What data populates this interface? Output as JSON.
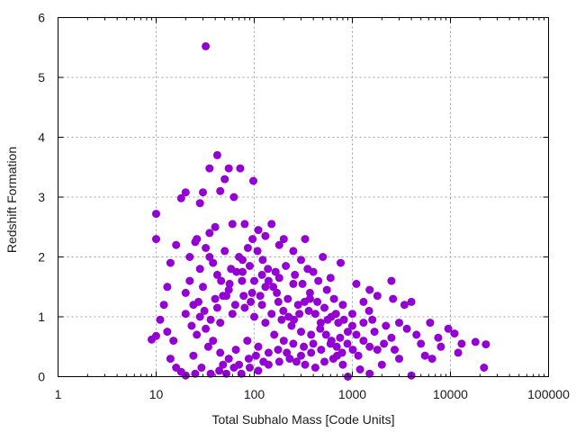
{
  "chart_data": {
    "type": "scatter",
    "xlabel": "Total Subhalo Mass [Code Units]",
    "ylabel": "Redshift Formation",
    "xscale": "log",
    "xlim": [
      1,
      100000
    ],
    "ylim": [
      0,
      6
    ],
    "xticks": [
      1,
      10,
      100,
      1000,
      10000,
      100000
    ],
    "xtick_labels": [
      "1",
      "10",
      "100",
      "1000",
      "10000",
      "100000"
    ],
    "yticks": [
      0,
      1,
      2,
      3,
      4,
      5,
      6
    ],
    "ytick_labels": [
      "0",
      "1",
      "2",
      "3",
      "4",
      "5",
      "6"
    ],
    "grid": true,
    "marker_color": "#9400d3",
    "series": [
      {
        "points": [
          [
            32,
            5.52
          ],
          [
            42,
            3.7
          ],
          [
            35,
            3.48
          ],
          [
            55,
            3.48
          ],
          [
            72,
            3.48
          ],
          [
            50,
            3.3
          ],
          [
            98,
            3.27
          ],
          [
            18,
            2.98
          ],
          [
            20,
            3.08
          ],
          [
            30,
            3.08
          ],
          [
            45,
            3.1
          ],
          [
            62,
            3.0
          ],
          [
            28,
            2.9
          ],
          [
            10,
            2.72
          ],
          [
            10,
            2.3
          ],
          [
            16,
            2.2
          ],
          [
            14,
            1.9
          ],
          [
            13,
            1.5
          ],
          [
            12,
            1.2
          ],
          [
            11,
            0.95
          ],
          [
            9,
            0.62
          ],
          [
            10,
            0.68
          ],
          [
            13,
            0.75
          ],
          [
            15,
            0.6
          ],
          [
            14,
            0.3
          ],
          [
            16,
            0.15
          ],
          [
            18,
            0.08
          ],
          [
            20,
            0.02
          ],
          [
            25,
            0.05
          ],
          [
            150,
            2.55
          ],
          [
            330,
            2.3
          ],
          [
            200,
            2.3
          ],
          [
            500,
            2.0
          ],
          [
            760,
            1.9
          ],
          [
            400,
            1.75
          ],
          [
            600,
            1.65
          ],
          [
            1100,
            1.55
          ],
          [
            1500,
            1.45
          ],
          [
            2500,
            1.6
          ],
          [
            1300,
            1.25
          ],
          [
            1800,
            1.35
          ],
          [
            2600,
            1.3
          ],
          [
            3400,
            1.2
          ],
          [
            4000,
            1.25
          ],
          [
            1000,
            1.05
          ],
          [
            1600,
            0.95
          ],
          [
            2200,
            0.85
          ],
          [
            3000,
            0.9
          ],
          [
            3600,
            0.8
          ],
          [
            4500,
            0.7
          ],
          [
            5000,
            0.55
          ],
          [
            6200,
            0.9
          ],
          [
            7500,
            0.65
          ],
          [
            9500,
            0.8
          ],
          [
            11000,
            0.72
          ],
          [
            13000,
            0.55
          ],
          [
            12000,
            0.4
          ],
          [
            18000,
            0.58
          ],
          [
            23000,
            0.54
          ],
          [
            22000,
            0.15
          ],
          [
            8000,
            0.5
          ],
          [
            5500,
            0.35
          ],
          [
            4000,
            0.02
          ],
          [
            3000,
            0.3
          ],
          [
            2000,
            0.2
          ],
          [
            1500,
            0.05
          ],
          [
            1200,
            0.12
          ],
          [
            900,
            0.0
          ],
          [
            700,
            0.35
          ],
          [
            2700,
            0.45
          ],
          [
            6500,
            0.3
          ],
          [
            40,
            2.5
          ],
          [
            60,
            2.55
          ],
          [
            80,
            2.55
          ],
          [
            35,
            2.4
          ],
          [
            25,
            2.25
          ],
          [
            110,
            2.45
          ],
          [
            130,
            2.35
          ],
          [
            180,
            2.2
          ],
          [
            250,
            2.1
          ],
          [
            300,
            1.95
          ],
          [
            350,
            1.8
          ],
          [
            450,
            1.6
          ],
          [
            550,
            1.45
          ],
          [
            650,
            1.3
          ],
          [
            800,
            1.2
          ],
          [
            250,
            1.55
          ],
          [
            180,
            1.65
          ],
          [
            120,
            1.7
          ],
          [
            90,
            1.85
          ],
          [
            70,
            2.0
          ],
          [
            50,
            2.1
          ],
          [
            35,
            2.0
          ],
          [
            28,
            1.8
          ],
          [
            22,
            1.6
          ],
          [
            20,
            1.4
          ],
          [
            24,
            1.2
          ],
          [
            28,
            1.0
          ],
          [
            32,
            0.8
          ],
          [
            38,
            0.6
          ],
          [
            45,
            0.4
          ],
          [
            55,
            0.3
          ],
          [
            70,
            0.2
          ],
          [
            90,
            0.15
          ],
          [
            110,
            0.1
          ],
          [
            140,
            0.2
          ],
          [
            180,
            0.25
          ],
          [
            230,
            0.3
          ],
          [
            300,
            0.35
          ],
          [
            380,
            0.4
          ],
          [
            480,
            0.45
          ],
          [
            600,
            0.55
          ],
          [
            750,
            0.65
          ],
          [
            900,
            0.75
          ],
          [
            1100,
            0.7
          ],
          [
            1300,
            0.6
          ],
          [
            1500,
            0.5
          ],
          [
            1800,
            0.45
          ],
          [
            2100,
            0.55
          ],
          [
            2500,
            0.65
          ],
          [
            40,
            1.3
          ],
          [
            55,
            1.45
          ],
          [
            75,
            1.6
          ],
          [
            95,
            1.4
          ],
          [
            120,
            1.2
          ],
          [
            150,
            1.05
          ],
          [
            190,
            0.95
          ],
          [
            240,
            0.85
          ],
          [
            300,
            0.75
          ],
          [
            380,
            0.7
          ],
          [
            470,
            0.8
          ],
          [
            560,
            0.95
          ],
          [
            680,
            1.05
          ],
          [
            820,
            0.95
          ],
          [
            1000,
            0.85
          ],
          [
            45,
            0.9
          ],
          [
            60,
            1.05
          ],
          [
            80,
            1.15
          ],
          [
            100,
            1.0
          ],
          [
            130,
            0.9
          ],
          [
            160,
            0.7
          ],
          [
            200,
            0.6
          ],
          [
            250,
            0.55
          ],
          [
            320,
            0.5
          ],
          [
            400,
            0.55
          ],
          [
            30,
            1.5
          ],
          [
            42,
            1.7
          ],
          [
            58,
            1.8
          ],
          [
            76,
            1.75
          ],
          [
            100,
            1.6
          ],
          [
            130,
            1.5
          ],
          [
            170,
            1.4
          ],
          [
            220,
            1.3
          ],
          [
            280,
            1.2
          ],
          [
            360,
            1.1
          ],
          [
            26,
            0.7
          ],
          [
            34,
            0.5
          ],
          [
            48,
            0.2
          ],
          [
            65,
            0.45
          ],
          [
            85,
            0.6
          ],
          [
            110,
            0.5
          ],
          [
            140,
            0.4
          ],
          [
            175,
            0.45
          ],
          [
            215,
            0.4
          ],
          [
            270,
            0.25
          ],
          [
            330,
            0.2
          ],
          [
            420,
            0.15
          ],
          [
            520,
            0.25
          ],
          [
            640,
            0.3
          ],
          [
            800,
            0.2
          ],
          [
            22,
            2.0
          ],
          [
            26,
            2.3
          ],
          [
            32,
            2.15
          ],
          [
            38,
            1.9
          ],
          [
            46,
            1.6
          ],
          [
            52,
            1.35
          ],
          [
            64,
            1.2
          ],
          [
            78,
            1.35
          ],
          [
            92,
            1.25
          ],
          [
            115,
            1.35
          ],
          [
            140,
            1.6
          ],
          [
            165,
            1.75
          ],
          [
            210,
            1.85
          ],
          [
            260,
            1.7
          ],
          [
            310,
            1.55
          ],
          [
            370,
            1.4
          ],
          [
            440,
            1.25
          ],
          [
            520,
            1.15
          ],
          [
            610,
            1.0
          ],
          [
            720,
            0.9
          ],
          [
            24,
            0.35
          ],
          [
            29,
            0.15
          ],
          [
            36,
            0.05
          ],
          [
            44,
            0.1
          ],
          [
            52,
            0.05
          ],
          [
            62,
            0.15
          ],
          [
            74,
            0.05
          ],
          [
            88,
            0.3
          ],
          [
            104,
            0.35
          ],
          [
            124,
            0.25
          ],
          [
            20,
            1.05
          ],
          [
            23,
            0.85
          ],
          [
            27,
            1.25
          ],
          [
            31,
            1.1
          ],
          [
            36,
            0.95
          ],
          [
            42,
            1.15
          ],
          [
            48,
            1.35
          ],
          [
            56,
            1.55
          ],
          [
            66,
            1.75
          ],
          [
            76,
            1.95
          ],
          [
            86,
            2.15
          ],
          [
            96,
            2.3
          ],
          [
            108,
            2.1
          ],
          [
            122,
            1.95
          ],
          [
            138,
            1.8
          ],
          [
            156,
            1.5
          ],
          [
            176,
            1.25
          ],
          [
            198,
            1.1
          ],
          [
            224,
            1.0
          ],
          [
            254,
            0.95
          ],
          [
            288,
            1.05
          ],
          [
            326,
            1.25
          ],
          [
            370,
            1.3
          ],
          [
            420,
            1.05
          ],
          [
            476,
            0.9
          ],
          [
            540,
            0.7
          ],
          [
            612,
            0.6
          ],
          [
            694,
            0.5
          ],
          [
            786,
            0.4
          ],
          [
            890,
            0.55
          ],
          [
            1010,
            0.45
          ],
          [
            1150,
            0.35
          ],
          [
            1300,
            0.9
          ],
          [
            1480,
            1.1
          ],
          [
            1680,
            0.75
          ]
        ]
      }
    ]
  }
}
